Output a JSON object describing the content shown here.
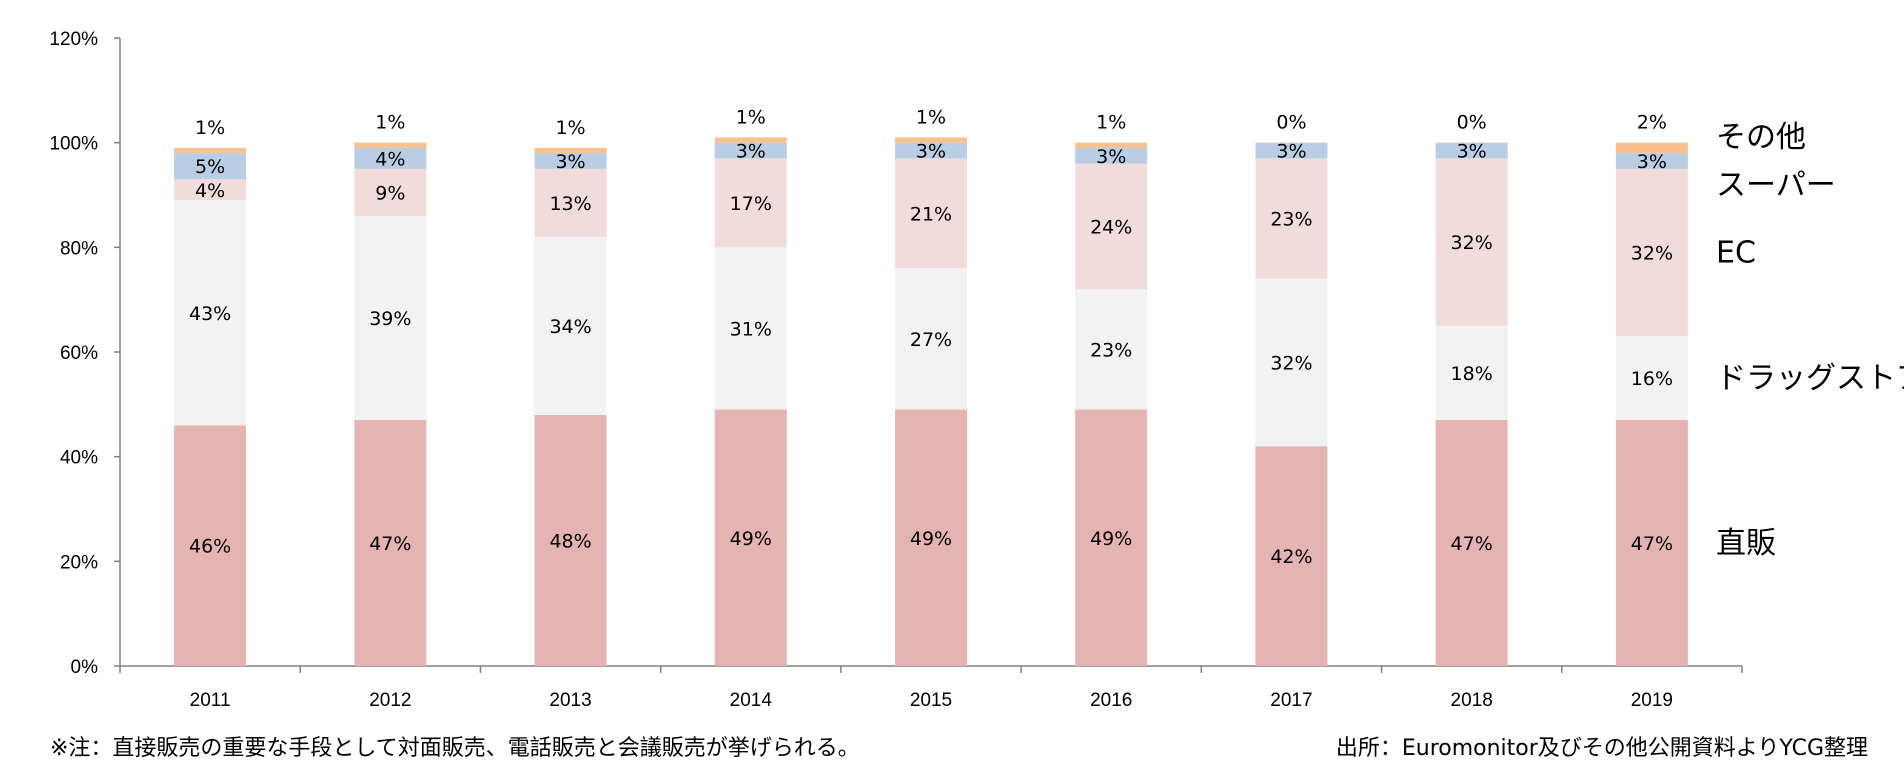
{
  "chart_data": {
    "type": "bar",
    "stacked": true,
    "categories": [
      "2011",
      "2012",
      "2013",
      "2014",
      "2015",
      "2016",
      "2017",
      "2018",
      "2019"
    ],
    "ylim": [
      0,
      120
    ],
    "yticks": [
      "0%",
      "20%",
      "40%",
      "60%",
      "80%",
      "100%",
      "120%"
    ],
    "yticks_values": [
      0,
      20,
      40,
      60,
      80,
      100,
      120
    ],
    "grid": false,
    "legend_placement": "right, aligned with segments",
    "series": [
      {
        "name": "直販",
        "color": "#e6b3b3",
        "values": [
          46,
          47,
          48,
          49,
          49,
          49,
          42,
          47,
          47
        ],
        "labels": [
          "46%",
          "47%",
          "48%",
          "49%",
          "49%",
          "49%",
          "42%",
          "47%",
          "47%"
        ]
      },
      {
        "name": "ドラッグストア",
        "color": "#f2f2f2",
        "values": [
          43,
          39,
          34,
          31,
          27,
          23,
          32,
          18,
          16
        ],
        "labels": [
          "43%",
          "39%",
          "34%",
          "31%",
          "27%",
          "23%",
          "32%",
          "18%",
          "16%"
        ]
      },
      {
        "name": "EC",
        "color": "#f2dcdb",
        "values": [
          4,
          9,
          13,
          17,
          21,
          24,
          23,
          32,
          32
        ],
        "labels": [
          "4%",
          "9%",
          "13%",
          "17%",
          "21%",
          "24%",
          "23%",
          "32%",
          "32%"
        ]
      },
      {
        "name": "スーパー",
        "color": "#b9cde5",
        "values": [
          5,
          4,
          3,
          3,
          3,
          3,
          3,
          3,
          3
        ],
        "labels": [
          "5%",
          "4%",
          "3%",
          "3%",
          "3%",
          "3%",
          "3%",
          "3%",
          "3%"
        ]
      },
      {
        "name": "その他",
        "color": "#fac090",
        "values": [
          1,
          1,
          1,
          1,
          1,
          1,
          0,
          0,
          2
        ],
        "labels": [
          "1%",
          "1%",
          "1%",
          "1%",
          "1%",
          "1%",
          "0%",
          "0%",
          "2%"
        ]
      }
    ]
  },
  "footnote": "※注：直接販売の重要な手段として対面販売、電話販売と会議販売が挙げられる。",
  "source": "出所：Euromonitor及びその他公開資料よりYCG整理"
}
